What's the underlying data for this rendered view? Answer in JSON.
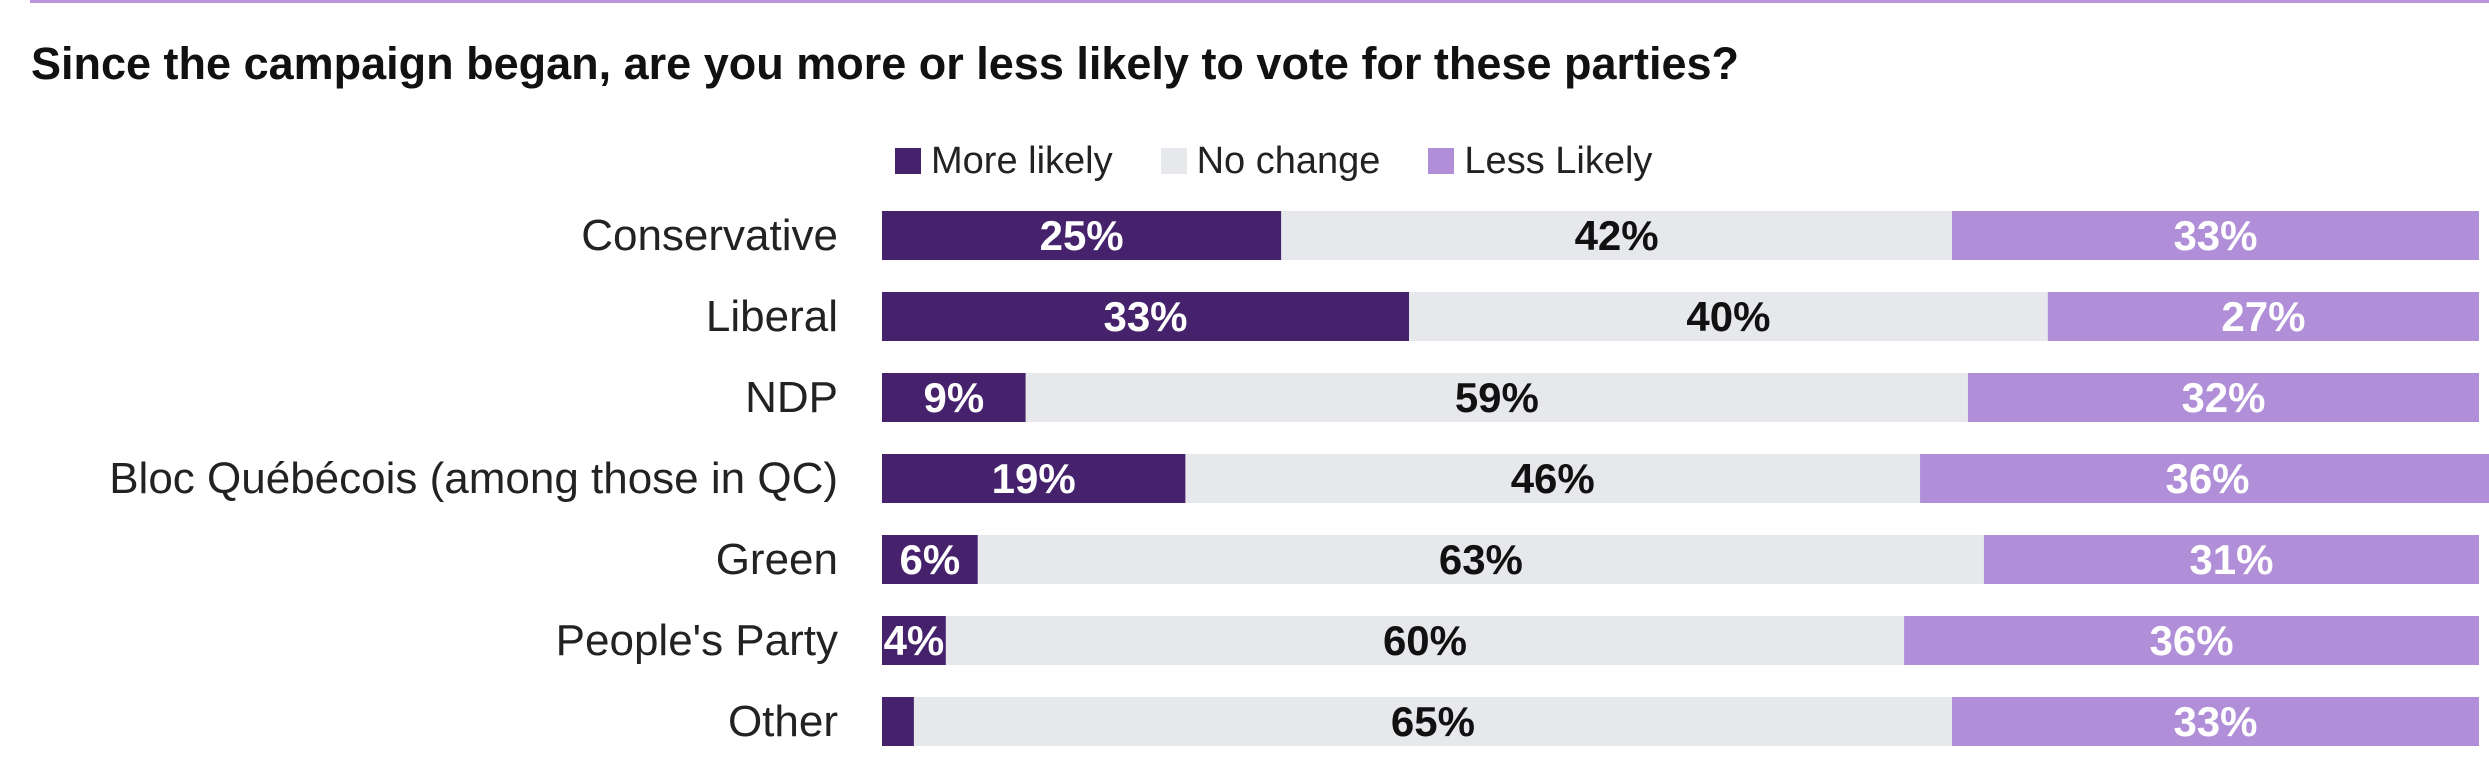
{
  "chart_data": {
    "type": "bar",
    "orientation": "horizontal",
    "stacked": true,
    "title": "Since the campaign began, are you more or less likely to vote for these parties?",
    "categories": [
      "Conservative",
      "Liberal",
      "NDP",
      "Bloc Québécois (among those in QC)",
      "Green",
      "People's Party",
      "Other"
    ],
    "series": [
      {
        "name": "More likely",
        "color": "#45226b",
        "label_color": "#ffffff",
        "values": [
          25,
          33,
          9,
          19,
          6,
          4,
          2
        ],
        "labels": [
          "25%",
          "33%",
          "9%",
          "19%",
          "6%",
          "4%",
          ""
        ]
      },
      {
        "name": "No change",
        "color": "#e6e8ec",
        "label_color": "#111111",
        "values": [
          42,
          40,
          59,
          46,
          63,
          60,
          65
        ],
        "labels": [
          "42%",
          "40%",
          "59%",
          "46%",
          "63%",
          "60%",
          "65%"
        ]
      },
      {
        "name": "Less Likely",
        "color": "#b08fd8",
        "label_color": "#ffffff",
        "values": [
          33,
          27,
          32,
          36,
          31,
          36,
          33
        ],
        "labels": [
          "33%",
          "27%",
          "32%",
          "36%",
          "31%",
          "36%",
          "33%"
        ]
      }
    ],
    "legend_position": "top",
    "grid": false,
    "xlim": [
      0,
      100
    ]
  }
}
